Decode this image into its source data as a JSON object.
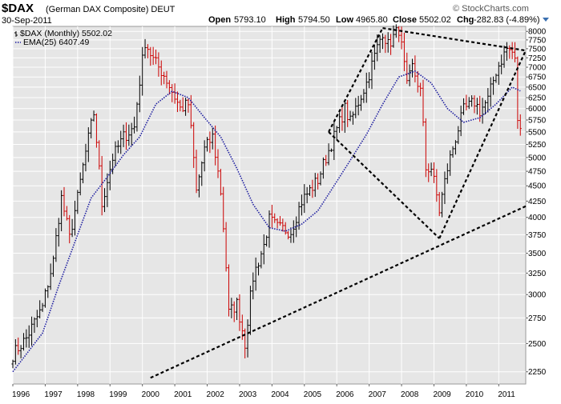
{
  "header": {
    "symbol": "$DAX",
    "name": "(German DAX Composite) DEUT",
    "date": "30-Sep-2011",
    "copyright": "© StockCharts.com",
    "open_label": "Open",
    "open": "5793.10",
    "high_label": "High",
    "high": "5794.50",
    "low_label": "Low",
    "low": "4965.80",
    "close_label": "Close",
    "close": "5502.02",
    "chg_label": "Chg",
    "chg": "-282.83 (-4.89%)"
  },
  "legend": {
    "main": "$DAX (Monthly) 5502.02",
    "ema": "EMA(25) 6407.49"
  },
  "colors": {
    "background": "#e6e6e6",
    "grid": "#ffffff",
    "up_bar": "#000000",
    "down_bar": "#cc0000",
    "ema": "#1e1ea0",
    "trendline": "#000000"
  },
  "chart_data": {
    "type": "bar",
    "title": "$DAX (German DAX Composite) DEUT",
    "interval": "Monthly",
    "ylim": [
      2150,
      8150
    ],
    "y_scale": "log",
    "y_ticks": [
      2250,
      2500,
      2750,
      3000,
      3250,
      3500,
      3750,
      4000,
      4250,
      4500,
      4750,
      5000,
      5250,
      5500,
      5750,
      6000,
      6250,
      6500,
      6750,
      7000,
      7250,
      7500,
      7750,
      8000
    ],
    "x_ticks": [
      "1996",
      "1997",
      "1998",
      "1999",
      "2000",
      "2001",
      "2002",
      "2003",
      "2004",
      "2005",
      "2006",
      "2007",
      "2008",
      "2009",
      "2010",
      "2011"
    ],
    "x_range": [
      "1996-01",
      "2011-11"
    ],
    "grid": true,
    "legend_position": "top-left",
    "series": [
      {
        "name": "$DAX (Monthly)",
        "style": "ohlc",
        "anchors": [
          [
            "1996-01",
            2400
          ],
          [
            "1996-06",
            2550
          ],
          [
            "1996-12",
            2860
          ],
          [
            "1997-04",
            3400
          ],
          [
            "1997-07",
            4300
          ],
          [
            "1997-10",
            3700
          ],
          [
            "1998-01",
            4300
          ],
          [
            "1998-07",
            5900
          ],
          [
            "1998-10",
            4200
          ],
          [
            "1999-02",
            5000
          ],
          [
            "1999-06",
            5400
          ],
          [
            "1999-10",
            5600
          ],
          [
            "2000-02",
            7700
          ],
          [
            "2000-05",
            7200
          ],
          [
            "2000-09",
            6800
          ],
          [
            "2000-12",
            6400
          ],
          [
            "2001-03",
            6000
          ],
          [
            "2001-06",
            6100
          ],
          [
            "2001-09",
            4400
          ],
          [
            "2001-12",
            5150
          ],
          [
            "2002-03",
            5400
          ],
          [
            "2002-06",
            4400
          ],
          [
            "2002-09",
            2800
          ],
          [
            "2002-12",
            2900
          ],
          [
            "2003-03",
            2500
          ],
          [
            "2003-06",
            3200
          ],
          [
            "2003-10",
            3600
          ],
          [
            "2003-12",
            3965
          ],
          [
            "2004-03",
            3850
          ],
          [
            "2004-08",
            3800
          ],
          [
            "2004-12",
            4250
          ],
          [
            "2005-06",
            4600
          ],
          [
            "2005-12",
            5400
          ],
          [
            "2006-04",
            6000
          ],
          [
            "2006-06",
            5700
          ],
          [
            "2006-12",
            6600
          ],
          [
            "2007-06",
            8000
          ],
          [
            "2007-08",
            7600
          ],
          [
            "2007-12",
            8070
          ],
          [
            "2008-03",
            6500
          ],
          [
            "2008-05",
            7000
          ],
          [
            "2008-08",
            6400
          ],
          [
            "2008-10",
            4800
          ],
          [
            "2008-12",
            4810
          ],
          [
            "2009-03",
            4100
          ],
          [
            "2009-06",
            4800
          ],
          [
            "2009-12",
            5960
          ],
          [
            "2010-04",
            6150
          ],
          [
            "2010-06",
            5950
          ],
          [
            "2010-09",
            6200
          ],
          [
            "2010-12",
            6900
          ],
          [
            "2011-04",
            7500
          ],
          [
            "2011-06",
            7400
          ],
          [
            "2011-07",
            7150
          ],
          [
            "2011-08",
            5780
          ],
          [
            "2011-09",
            5502
          ]
        ]
      },
      {
        "name": "EMA(25)",
        "style": "dotted-line",
        "points": [
          [
            "1996-01",
            2250
          ],
          [
            "1996-12",
            2600
          ],
          [
            "1997-06",
            3100
          ],
          [
            "1997-12",
            3650
          ],
          [
            "1998-06",
            4300
          ],
          [
            "1998-12",
            4650
          ],
          [
            "1999-06",
            5050
          ],
          [
            "1999-12",
            5400
          ],
          [
            "2000-06",
            6100
          ],
          [
            "2000-12",
            6400
          ],
          [
            "2001-06",
            6250
          ],
          [
            "2001-12",
            5800
          ],
          [
            "2002-06",
            5400
          ],
          [
            "2002-12",
            4800
          ],
          [
            "2003-06",
            4200
          ],
          [
            "2003-12",
            3850
          ],
          [
            "2004-06",
            3800
          ],
          [
            "2004-12",
            3900
          ],
          [
            "2005-06",
            4100
          ],
          [
            "2005-12",
            4500
          ],
          [
            "2006-06",
            4950
          ],
          [
            "2006-12",
            5450
          ],
          [
            "2007-06",
            6100
          ],
          [
            "2007-12",
            6750
          ],
          [
            "2008-06",
            6900
          ],
          [
            "2008-12",
            6600
          ],
          [
            "2009-06",
            6000
          ],
          [
            "2009-12",
            5700
          ],
          [
            "2010-06",
            5800
          ],
          [
            "2010-12",
            6100
          ],
          [
            "2011-06",
            6500
          ],
          [
            "2011-09",
            6407
          ]
        ]
      }
    ],
    "annotations": [
      {
        "type": "trendline",
        "from": [
          "2000-04",
          2200
        ],
        "to": [
          "2011-11",
          4170
        ]
      },
      {
        "type": "trendline",
        "from": [
          "2005-10",
          5500
        ],
        "to": [
          "2007-06",
          8100
        ]
      },
      {
        "type": "trendline",
        "from": [
          "2007-06",
          8100
        ],
        "to": [
          "2011-11",
          7450
        ]
      },
      {
        "type": "trendline",
        "from": [
          "2005-10",
          5500
        ],
        "to": [
          "2009-03",
          3700
        ]
      },
      {
        "type": "trendline",
        "from": [
          "2009-03",
          3700
        ],
        "to": [
          "2011-11",
          7450
        ]
      }
    ]
  }
}
